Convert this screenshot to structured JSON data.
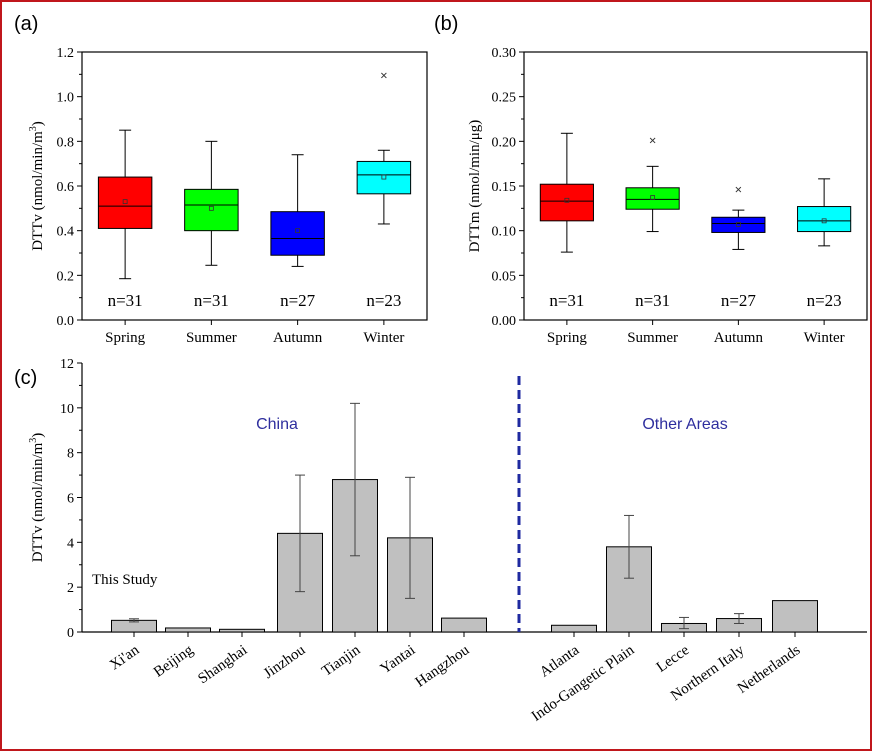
{
  "chart_data": [
    {
      "panel_label": "(a)",
      "type": "box",
      "ylabel": "DTTv (nmol/min/m",
      "ylabel_sup": "3",
      "ylabel_close": ")",
      "ylim": [
        0,
        1.2
      ],
      "yticks": [
        0.0,
        0.2,
        0.4,
        0.6,
        0.8,
        1.0,
        1.2
      ],
      "ytick_labels": [
        "0.0",
        "0.2",
        "0.4",
        "0.6",
        "0.8",
        "1.0",
        "1.2"
      ],
      "categories": [
        "Spring",
        "Summer",
        "Autumn",
        "Winter"
      ],
      "colors": [
        "#ff0000",
        "#00ff00",
        "#0000ff",
        "#00ffff"
      ],
      "boxes": [
        {
          "min": 0.185,
          "q1": 0.41,
          "median": 0.51,
          "q3": 0.64,
          "max": 0.85,
          "mean": 0.53,
          "outliers": []
        },
        {
          "min": 0.245,
          "q1": 0.4,
          "median": 0.515,
          "q3": 0.585,
          "max": 0.8,
          "mean": 0.5,
          "outliers": []
        },
        {
          "min": 0.24,
          "q1": 0.29,
          "median": 0.365,
          "q3": 0.485,
          "max": 0.74,
          "mean": 0.4,
          "outliers": []
        },
        {
          "min": 0.43,
          "q1": 0.565,
          "median": 0.65,
          "q3": 0.71,
          "max": 0.76,
          "mean": 0.64,
          "outliers": [
            1.095
          ]
        }
      ],
      "n_labels": [
        "n=31",
        "n=31",
        "n=27",
        "n=23"
      ]
    },
    {
      "panel_label": "(b)",
      "type": "box",
      "ylabel": "DTTm (nmol/min/μg)",
      "ylim": [
        0,
        0.3
      ],
      "yticks": [
        0.0,
        0.05,
        0.1,
        0.15,
        0.2,
        0.25,
        0.3
      ],
      "ytick_labels": [
        "0.00",
        "0.05",
        "0.10",
        "0.15",
        "0.20",
        "0.25",
        "0.30"
      ],
      "categories": [
        "Spring",
        "Summer",
        "Autumn",
        "Winter"
      ],
      "colors": [
        "#ff0000",
        "#00ff00",
        "#0000ff",
        "#00ffff"
      ],
      "boxes": [
        {
          "min": 0.076,
          "q1": 0.111,
          "median": 0.133,
          "q3": 0.152,
          "max": 0.209,
          "mean": 0.134,
          "outliers": []
        },
        {
          "min": 0.099,
          "q1": 0.124,
          "median": 0.135,
          "q3": 0.148,
          "max": 0.172,
          "mean": 0.137,
          "outliers": [
            0.201
          ]
        },
        {
          "min": 0.079,
          "q1": 0.098,
          "median": 0.108,
          "q3": 0.115,
          "max": 0.123,
          "mean": 0.107,
          "outliers": [
            0.146
          ]
        },
        {
          "min": 0.083,
          "q1": 0.099,
          "median": 0.111,
          "q3": 0.127,
          "max": 0.158,
          "mean": 0.111,
          "outliers": []
        }
      ],
      "n_labels": [
        "n=31",
        "n=31",
        "n=27",
        "n=23"
      ]
    },
    {
      "panel_label": "(c)",
      "type": "bar",
      "ylabel": "DTTv (nmol/min/m",
      "ylabel_sup": "3",
      "ylabel_close": ")",
      "ylim": [
        0,
        12
      ],
      "yticks": [
        0,
        2,
        4,
        6,
        8,
        10,
        12
      ],
      "ytick_labels": [
        "0",
        "2",
        "4",
        "6",
        "8",
        "10",
        "12"
      ],
      "bar_color": "#c0c0c0",
      "groups": [
        {
          "name": "China",
          "categories": [
            "Xi'an",
            "Beijing",
            "Shanghai",
            "Jinzhou",
            "Tianjin",
            "Yantai",
            "Hangzhou"
          ],
          "values": [
            0.52,
            0.18,
            0.12,
            4.4,
            6.8,
            4.2,
            0.62
          ],
          "error_low": [
            0.45,
            null,
            null,
            1.8,
            3.4,
            1.5,
            null
          ],
          "error_high": [
            0.59,
            null,
            null,
            7.0,
            10.2,
            6.9,
            null
          ]
        },
        {
          "name": "Other Areas",
          "categories": [
            "Atlanta",
            "Indo-Gangetic Plain",
            "Lecce",
            "Northern Italy",
            "Netherlands"
          ],
          "values": [
            0.3,
            3.8,
            0.38,
            0.6,
            1.4
          ],
          "error_low": [
            null,
            2.4,
            0.15,
            0.38,
            null
          ],
          "error_high": [
            null,
            5.2,
            0.65,
            0.82,
            null
          ]
        }
      ],
      "annotations": {
        "this_study": "This Study"
      },
      "divider_color": "#1f2aa0",
      "group_label_color": "#2e2e9e"
    }
  ]
}
